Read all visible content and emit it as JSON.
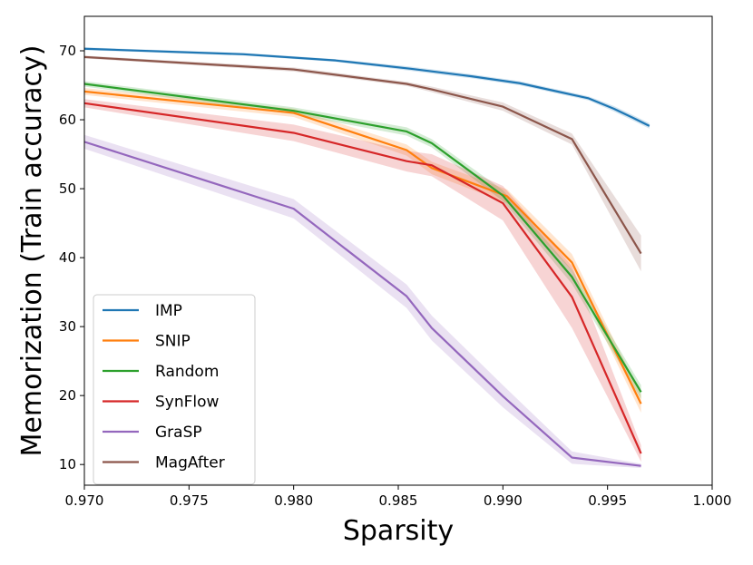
{
  "chart_data": {
    "type": "line",
    "title": "",
    "xlabel": "Sparsity",
    "ylabel": "Memorization (Train accuracy)",
    "xlim": [
      0.97,
      1.0
    ],
    "ylim": [
      7,
      75
    ],
    "xticks": [
      "0.970",
      "0.975",
      "0.980",
      "0.985",
      "0.990",
      "0.995",
      "1.000"
    ],
    "xtick_values": [
      0.97,
      0.975,
      0.98,
      0.985,
      0.99,
      0.995,
      1.0
    ],
    "yticks": [
      "10",
      "20",
      "30",
      "40",
      "50",
      "60",
      "70"
    ],
    "ytick_values": [
      10,
      20,
      30,
      40,
      50,
      60,
      70
    ],
    "grid": false,
    "legend_position": "lower-left",
    "series": [
      {
        "name": "IMP",
        "color": "#1f77b4",
        "x": [
          0.97,
          0.9776,
          0.982,
          0.9856,
          0.9885,
          0.9908,
          0.9926,
          0.9941,
          0.9953,
          0.9962,
          0.997
        ],
        "y": [
          70.3,
          69.5,
          68.6,
          67.4,
          66.3,
          65.3,
          64.1,
          63.1,
          61.6,
          60.3,
          59.1
        ],
        "band": [
          0.2,
          0.2,
          0.2,
          0.3,
          0.3,
          0.3,
          0.3,
          0.3,
          0.4,
          0.4,
          0.4
        ]
      },
      {
        "name": "SNIP",
        "color": "#ff7f0e",
        "x": [
          0.97,
          0.98,
          0.9854,
          0.9866,
          0.9902,
          0.9933,
          0.9966
        ],
        "y": [
          64.1,
          61.0,
          55.6,
          53.0,
          48.9,
          39.3,
          18.8
        ],
        "band": [
          0.5,
          0.6,
          0.8,
          0.9,
          1.0,
          1.2,
          1.3
        ]
      },
      {
        "name": "Random",
        "color": "#2ca02c",
        "x": [
          0.97,
          0.98,
          0.9854,
          0.9866,
          0.99,
          0.9933,
          0.9966
        ],
        "y": [
          65.2,
          61.3,
          58.3,
          56.6,
          49.0,
          37.2,
          20.5
        ],
        "band": [
          0.4,
          0.5,
          0.6,
          0.6,
          0.8,
          1.0,
          1.0
        ]
      },
      {
        "name": "SynFlow",
        "color": "#d62728",
        "x": [
          0.97,
          0.98,
          0.9854,
          0.9866,
          0.99,
          0.9933,
          0.9966
        ],
        "y": [
          62.4,
          58.1,
          54.0,
          53.4,
          47.9,
          34.3,
          11.6
        ],
        "band": [
          0.6,
          1.2,
          1.5,
          1.6,
          2.5,
          4.5,
          1.2
        ]
      },
      {
        "name": "GraSP",
        "color": "#9467bd",
        "x": [
          0.97,
          0.98,
          0.9854,
          0.9866,
          0.99,
          0.9933,
          0.9966
        ],
        "y": [
          56.8,
          47.1,
          34.4,
          29.8,
          19.9,
          11.0,
          9.8
        ],
        "band": [
          1.0,
          1.4,
          1.7,
          1.8,
          1.6,
          0.9,
          0.3
        ]
      },
      {
        "name": "MagAfter",
        "color": "#8c564b",
        "x": [
          0.97,
          0.98,
          0.9854,
          0.9866,
          0.99,
          0.9933,
          0.9966
        ],
        "y": [
          69.1,
          67.3,
          65.2,
          64.4,
          61.9,
          57.2,
          40.6
        ],
        "band": [
          0.2,
          0.3,
          0.3,
          0.4,
          0.6,
          0.8,
          2.6
        ]
      }
    ]
  }
}
